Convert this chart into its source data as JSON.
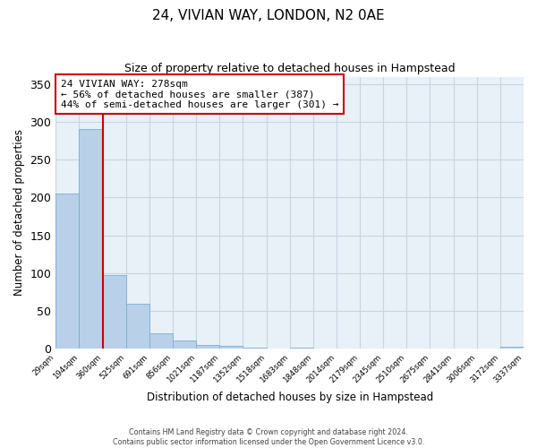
{
  "title": "24, VIVIAN WAY, LONDON, N2 0AE",
  "subtitle": "Size of property relative to detached houses in Hampstead",
  "xlabel": "Distribution of detached houses by size in Hampstead",
  "ylabel": "Number of detached properties",
  "bar_values": [
    205,
    291,
    97,
    59,
    20,
    10,
    5,
    3,
    1,
    0,
    1,
    0,
    0,
    0,
    0,
    0,
    0,
    0,
    0,
    2
  ],
  "bar_labels": [
    "29sqm",
    "194sqm",
    "360sqm",
    "525sqm",
    "691sqm",
    "856sqm",
    "1021sqm",
    "1187sqm",
    "1352sqm",
    "1518sqm",
    "1683sqm",
    "1848sqm",
    "2014sqm",
    "2179sqm",
    "2345sqm",
    "2510sqm",
    "2675sqm",
    "2841sqm",
    "3006sqm",
    "3172sqm",
    "3337sqm"
  ],
  "bar_color": "#b8d0e8",
  "bar_edge_color": "#7aafd4",
  "grid_color": "#c8d4e0",
  "background_color": "#e8f0f8",
  "vline_color": "#cc0000",
  "annotation_title": "24 VIVIAN WAY: 278sqm",
  "annotation_line1": "← 56% of detached houses are smaller (387)",
  "annotation_line2": "44% of semi-detached houses are larger (301) →",
  "annotation_box_color": "#ffffff",
  "annotation_border_color": "#cc0000",
  "ylim": [
    0,
    360
  ],
  "yticks": [
    0,
    50,
    100,
    150,
    200,
    250,
    300,
    350
  ],
  "footnote1": "Contains HM Land Registry data © Crown copyright and database right 2024.",
  "footnote2": "Contains public sector information licensed under the Open Government Licence v3.0."
}
